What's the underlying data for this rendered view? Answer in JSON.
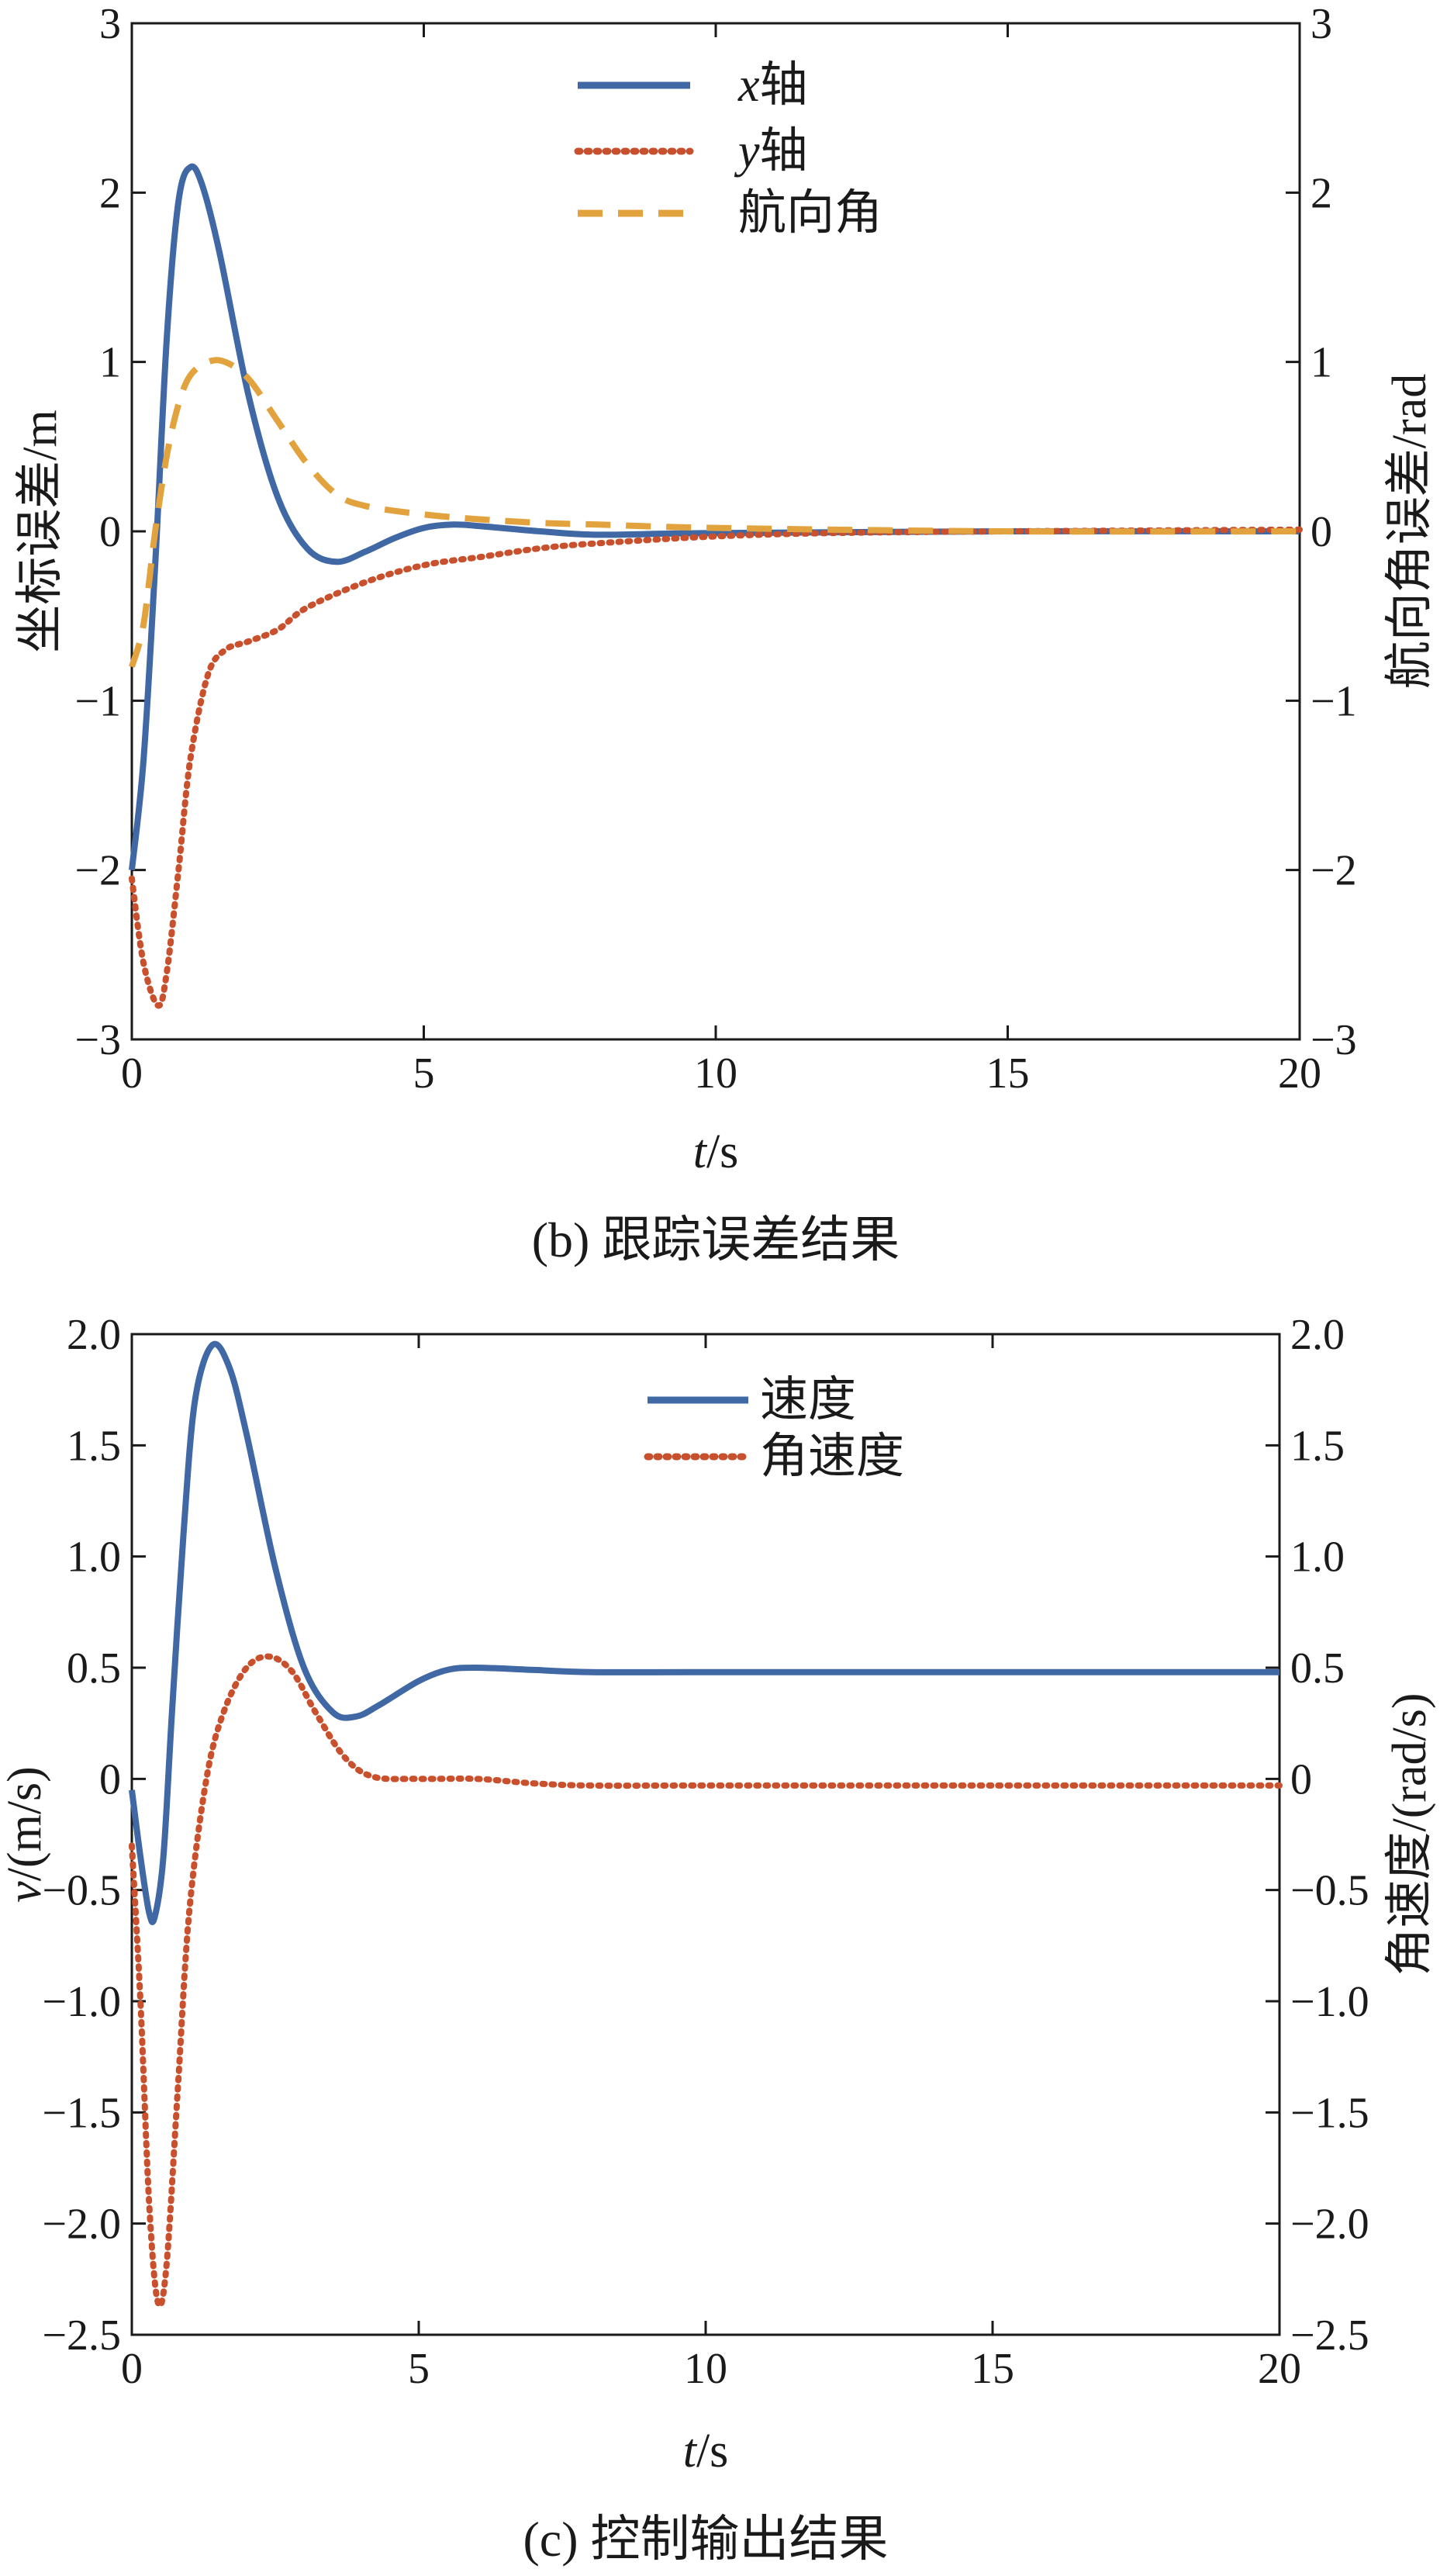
{
  "colors": {
    "blue": "#3f68a4",
    "red": "#c9502d",
    "orange": "#e2a33e",
    "axis": "#1a1a1a",
    "background": "#ffffff"
  },
  "chart_data": [
    {
      "type": "line",
      "caption": "(b) 跟踪误差结果",
      "xlabel_italic": "t",
      "xlabel_unit": "/s",
      "ylabel_left": "坐标误差/m",
      "ylabel_right": "航向角误差/rad",
      "xlim": [
        0,
        20
      ],
      "ylim_left": [
        -3,
        3
      ],
      "ylim_right": [
        -3,
        3
      ],
      "xticks": [
        "0",
        "5",
        "10",
        "15",
        "20"
      ],
      "yticks_left": [
        "3",
        "2",
        "1",
        "0",
        "−1",
        "−2",
        "−3"
      ],
      "yticks_right": [
        "3",
        "2",
        "1",
        "0",
        "−1",
        "−2",
        "−3"
      ],
      "legend_position": "top-center",
      "series": [
        {
          "name_italic": "x",
          "name": "轴",
          "style": "solid",
          "color": "#3f68a4",
          "axis": "left",
          "points": [
            [
              0,
              -2.0
            ],
            [
              0.2,
              -1.35
            ],
            [
              0.4,
              -0.2
            ],
            [
              0.6,
              1.15
            ],
            [
              0.8,
              1.95
            ],
            [
              1.0,
              2.15
            ],
            [
              1.2,
              2.05
            ],
            [
              1.5,
              1.65
            ],
            [
              2.0,
              0.8
            ],
            [
              2.5,
              0.2
            ],
            [
              3.0,
              -0.1
            ],
            [
              3.5,
              -0.18
            ],
            [
              4.0,
              -0.12
            ],
            [
              4.5,
              -0.04
            ],
            [
              5.0,
              0.02
            ],
            [
              5.5,
              0.04
            ],
            [
              6.0,
              0.03
            ],
            [
              7.0,
              0.0
            ],
            [
              8.0,
              -0.02
            ],
            [
              10.0,
              -0.01
            ],
            [
              15.0,
              0.0
            ],
            [
              20.0,
              0.0
            ]
          ]
        },
        {
          "name_italic": "y",
          "name": "轴",
          "style": "dotted",
          "color": "#c9502d",
          "axis": "left",
          "points": [
            [
              0,
              -2.05
            ],
            [
              0.2,
              -2.55
            ],
            [
              0.45,
              -2.8
            ],
            [
              0.6,
              -2.6
            ],
            [
              0.8,
              -2.0
            ],
            [
              1.0,
              -1.35
            ],
            [
              1.3,
              -0.85
            ],
            [
              1.6,
              -0.7
            ],
            [
              2.0,
              -0.65
            ],
            [
              2.5,
              -0.58
            ],
            [
              3.0,
              -0.45
            ],
            [
              4.0,
              -0.3
            ],
            [
              5.0,
              -0.2
            ],
            [
              6.0,
              -0.15
            ],
            [
              7.0,
              -0.1
            ],
            [
              8.0,
              -0.07
            ],
            [
              10.0,
              -0.03
            ],
            [
              12.0,
              -0.01
            ],
            [
              15.0,
              0.0
            ],
            [
              20.0,
              0.01
            ]
          ]
        },
        {
          "name": "航向角",
          "style": "dashed",
          "color": "#e2a33e",
          "axis": "right",
          "points": [
            [
              0,
              -0.8
            ],
            [
              0.2,
              -0.55
            ],
            [
              0.4,
              0.0
            ],
            [
              0.6,
              0.45
            ],
            [
              0.8,
              0.75
            ],
            [
              1.0,
              0.92
            ],
            [
              1.3,
              1.0
            ],
            [
              1.6,
              1.0
            ],
            [
              2.0,
              0.9
            ],
            [
              2.5,
              0.65
            ],
            [
              3.0,
              0.4
            ],
            [
              3.5,
              0.22
            ],
            [
              4.0,
              0.15
            ],
            [
              5.0,
              0.1
            ],
            [
              6.0,
              0.07
            ],
            [
              7.0,
              0.05
            ],
            [
              8.0,
              0.04
            ],
            [
              10.0,
              0.02
            ],
            [
              15.0,
              0.0
            ],
            [
              20.0,
              0.0
            ]
          ]
        }
      ]
    },
    {
      "type": "line",
      "caption": "(c) 控制输出结果",
      "xlabel_italic": "t",
      "xlabel_unit": "/s",
      "ylabel_left_italic": "v",
      "ylabel_left": "/(m/s)",
      "ylabel_right": "角速度/(rad/s)",
      "xlim": [
        0,
        20
      ],
      "ylim_left": [
        -2.5,
        2.0
      ],
      "ylim_right": [
        -2.5,
        2.0
      ],
      "xticks": [
        "0",
        "5",
        "10",
        "15",
        "20"
      ],
      "yticks_left": [
        "2.0",
        "1.5",
        "1.0",
        "0.5",
        "0",
        "−0.5",
        "−1.0",
        "−1.5",
        "−2.0",
        "−2.5"
      ],
      "yticks_right": [
        "2.0",
        "1.5",
        "1.0",
        "0.5",
        "0",
        "−0.5",
        "−1.0",
        "−1.5",
        "−2.0",
        "−2.5"
      ],
      "legend_position": "top-center",
      "series": [
        {
          "name": "速度",
          "style": "solid",
          "color": "#3f68a4",
          "axis": "left",
          "points": [
            [
              0,
              -0.05
            ],
            [
              0.15,
              -0.35
            ],
            [
              0.3,
              -0.6
            ],
            [
              0.4,
              -0.62
            ],
            [
              0.55,
              -0.35
            ],
            [
              0.7,
              0.3
            ],
            [
              0.9,
              1.1
            ],
            [
              1.1,
              1.7
            ],
            [
              1.4,
              1.95
            ],
            [
              1.7,
              1.85
            ],
            [
              2.0,
              1.55
            ],
            [
              2.5,
              0.95
            ],
            [
              3.0,
              0.5
            ],
            [
              3.5,
              0.3
            ],
            [
              3.9,
              0.28
            ],
            [
              4.3,
              0.33
            ],
            [
              5.0,
              0.44
            ],
            [
              5.5,
              0.49
            ],
            [
              6.0,
              0.5
            ],
            [
              7.0,
              0.49
            ],
            [
              8.0,
              0.48
            ],
            [
              10.0,
              0.48
            ],
            [
              15.0,
              0.48
            ],
            [
              20.0,
              0.48
            ]
          ]
        },
        {
          "name": "角速度",
          "style": "dotted",
          "color": "#c9502d",
          "axis": "right",
          "points": [
            [
              0,
              -0.3
            ],
            [
              0.15,
              -1.0
            ],
            [
              0.3,
              -1.9
            ],
            [
              0.45,
              -2.35
            ],
            [
              0.6,
              -2.2
            ],
            [
              0.8,
              -1.4
            ],
            [
              1.0,
              -0.6
            ],
            [
              1.3,
              0.0
            ],
            [
              1.6,
              0.3
            ],
            [
              2.0,
              0.5
            ],
            [
              2.4,
              0.55
            ],
            [
              2.8,
              0.48
            ],
            [
              3.2,
              0.3
            ],
            [
              3.7,
              0.1
            ],
            [
              4.2,
              0.01
            ],
            [
              5.0,
              0.0
            ],
            [
              6.0,
              0.0
            ],
            [
              7.0,
              -0.02
            ],
            [
              8.0,
              -0.03
            ],
            [
              10.0,
              -0.03
            ],
            [
              15.0,
              -0.03
            ],
            [
              20.0,
              -0.03
            ]
          ]
        }
      ]
    }
  ]
}
